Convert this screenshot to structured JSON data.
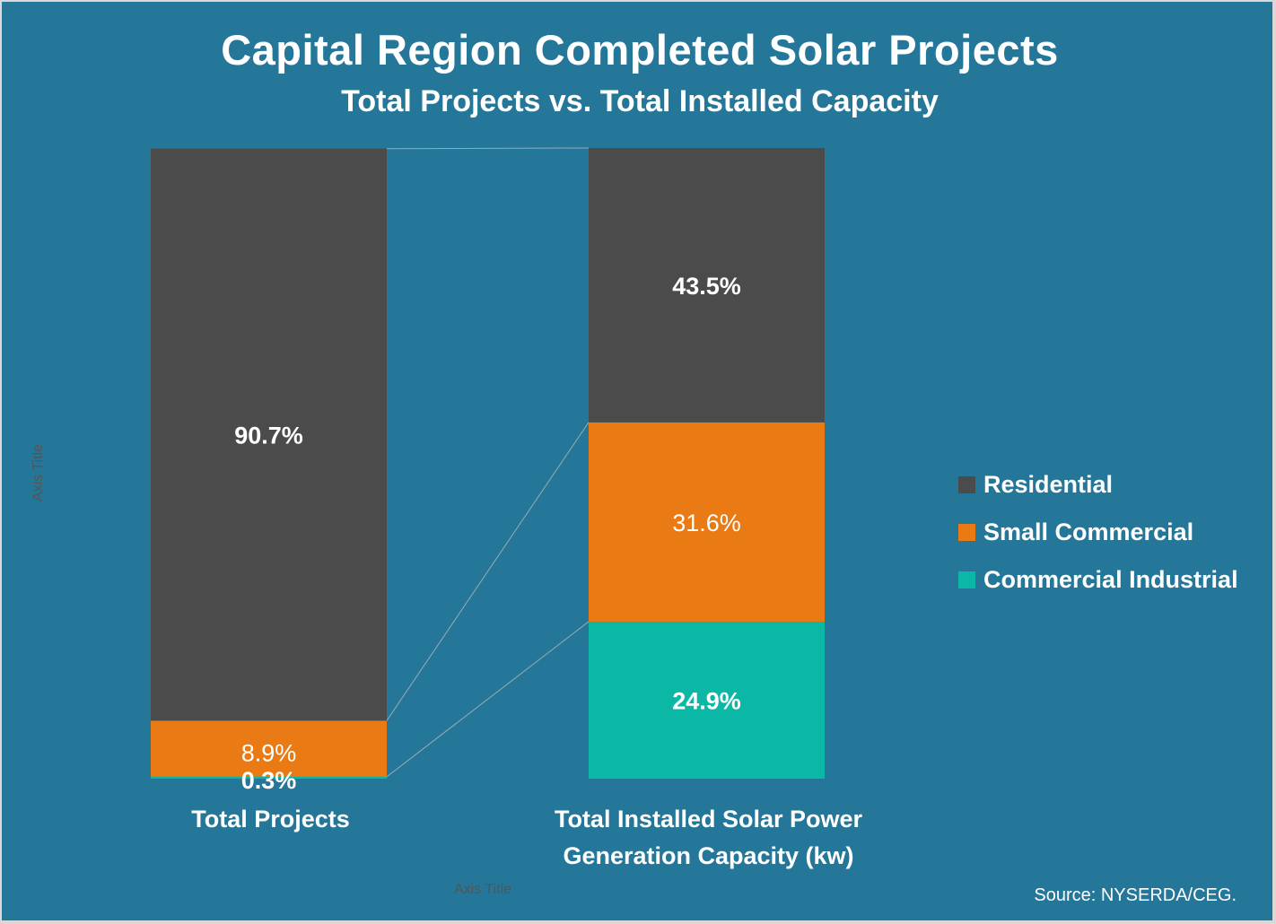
{
  "chart_data": {
    "type": "bar",
    "stacked": true,
    "percent_stacked": true,
    "title": "Capital Region Completed Solar Projects",
    "subtitle": "Total Projects vs. Total Installed Capacity",
    "categories": [
      "Total Projects",
      "Total Installed Solar Power Generation Capacity (kw)"
    ],
    "series": [
      {
        "name": "Commercial Industrial",
        "color": "#0bb8a6",
        "values": [
          0.3,
          24.9
        ],
        "labels": [
          "0.3%",
          "24.9%"
        ]
      },
      {
        "name": "Small Commercial",
        "color": "#ea7a13",
        "values": [
          8.9,
          31.6
        ],
        "labels": [
          "8.9%",
          "31.6%"
        ]
      },
      {
        "name": "Residential",
        "color": "#4b4b4b",
        "values": [
          90.7,
          43.5
        ],
        "labels": [
          "90.7%",
          "43.5%"
        ]
      }
    ],
    "ylim": [
      0,
      100
    ],
    "xlabel": "Axis Title",
    "ylabel": "Axis Title",
    "series_lines": true,
    "grid": false,
    "legend_position": "right",
    "legend": [
      "Residential",
      "Small Commercial",
      "Commercial Industrial"
    ]
  },
  "colors": {
    "background": "#25779a",
    "residential": "#4b4b4b",
    "small_commercial": "#ea7a13",
    "commercial_industrial": "#0bb8a6",
    "series_line": "#9aa9b3"
  },
  "source": "Source: NYSERDA/CEG."
}
